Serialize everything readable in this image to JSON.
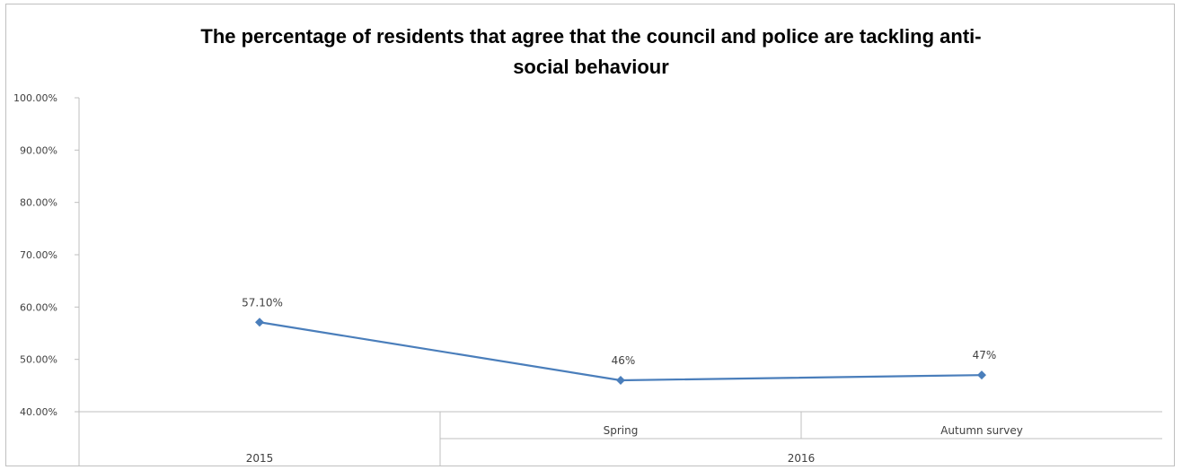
{
  "chart_data": {
    "type": "line",
    "title": "The percentage of residents that agree that the council and police are tackling anti-\nsocial behaviour",
    "xlabel": "",
    "ylabel": "",
    "ylim": [
      0.4,
      1.0
    ],
    "y_ticks": [
      "100.00%",
      "90.00%",
      "80.00%",
      "70.00%",
      "60.00%",
      "50.00%",
      "40.00%"
    ],
    "y_tick_values": [
      1.0,
      0.9,
      0.8,
      0.7,
      0.6,
      0.5,
      0.4
    ],
    "categories": [
      {
        "label": "",
        "group": "2015"
      },
      {
        "label": "Spring",
        "group": "2016"
      },
      {
        "label": "Autumn survey",
        "group": "2016"
      }
    ],
    "groups": [
      {
        "label": "2015",
        "span": [
          0,
          0
        ]
      },
      {
        "label": "2016",
        "span": [
          1,
          2
        ]
      }
    ],
    "series": [
      {
        "values": [
          0.571,
          0.46,
          0.47
        ],
        "data_labels": [
          "57.10%",
          "46%",
          "47%"
        ]
      }
    ],
    "grid": false,
    "legend": "none",
    "line_color": "#4a7ebb",
    "axis_color": "#bfbfbf"
  }
}
